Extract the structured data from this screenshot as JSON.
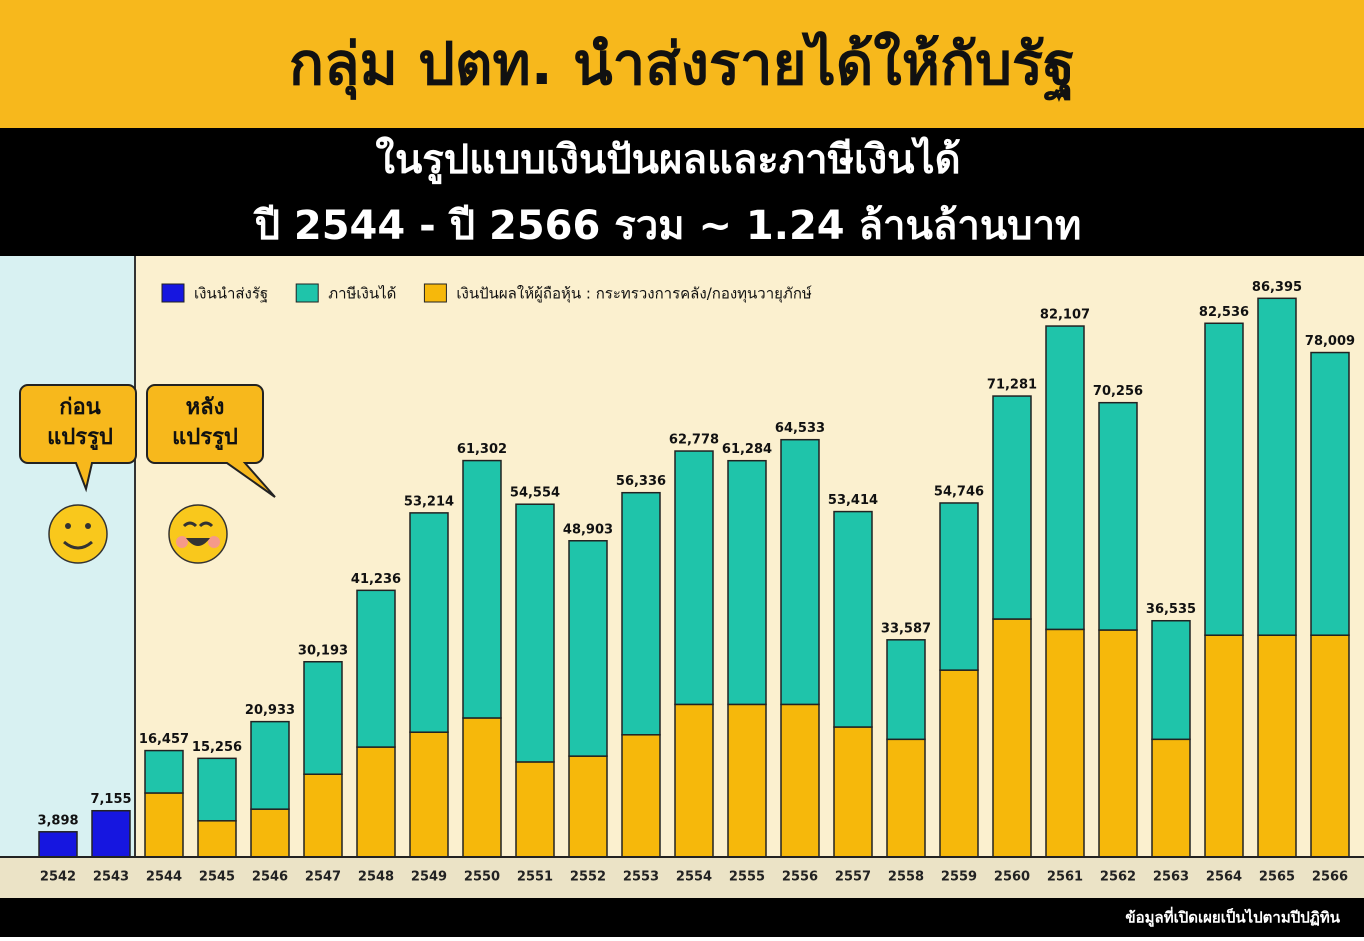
{
  "chart_data": {
    "type": "stacked-bar",
    "title": "กลุ่ม ปตท. นำส่งรายได้ให้กับรัฐ",
    "subtitle": [
      "ในรูปแบบเงินปันผลและภาษีเงินได้",
      "ปี 2544 - ปี 2566 รวม ~ 1.24 ล้านล้านบาท"
    ],
    "categories": [
      "2542",
      "2543",
      "2544",
      "2545",
      "2546",
      "2547",
      "2548",
      "2549",
      "2550",
      "2551",
      "2552",
      "2553",
      "2554",
      "2555",
      "2556",
      "2557",
      "2558",
      "2559",
      "2560",
      "2561",
      "2562",
      "2563",
      "2564",
      "2565",
      "2566"
    ],
    "series": [
      {
        "name": "เงินนำส่งรัฐ",
        "color": "#1616e0",
        "values": [
          3898,
          7155,
          null,
          null,
          null,
          null,
          null,
          null,
          null,
          null,
          null,
          null,
          null,
          null,
          null,
          null,
          null,
          null,
          null,
          null,
          null,
          null,
          null,
          null,
          null
        ]
      },
      {
        "name": "เงินปันผลให้ผู้ถือหุ้น : กระทรวงการคลัง/กองทุนวายุภักษ์",
        "color": "#f6b80b",
        "values": [
          null,
          null,
          9900,
          5600,
          7400,
          12800,
          17000,
          19300,
          21500,
          14700,
          15600,
          18900,
          23600,
          23600,
          23600,
          20100,
          18200,
          28900,
          36800,
          35200,
          35100,
          18200,
          34300,
          34300,
          34300
        ]
      },
      {
        "name": "ภาษีเงินได้",
        "color": "#1fc4aa",
        "values": [
          null,
          null,
          6557,
          9656,
          13533,
          17393,
          24236,
          33914,
          39802,
          39854,
          33303,
          37436,
          39178,
          37684,
          40933,
          33314,
          15387,
          25846,
          34481,
          46907,
          35156,
          18335,
          48236,
          52095,
          43709
        ]
      }
    ],
    "legend_order": [
      0,
      2,
      1
    ],
    "totals": {
      "values": [
        3898,
        7155,
        16457,
        15256,
        20933,
        30193,
        41236,
        53214,
        61302,
        54554,
        48903,
        56336,
        62778,
        61284,
        64533,
        53414,
        33587,
        54746,
        71281,
        82107,
        70256,
        36535,
        82536,
        86395,
        78009
      ],
      "value_labels": [
        "3,898",
        "7,155",
        "16,457",
        "15,256",
        "20,933",
        "30,193",
        "41,236",
        "53,214",
        "61,302",
        "54,554",
        "48,903",
        "56,336",
        "62,778",
        "61,284",
        "64,533",
        "53,414",
        "33,587",
        "54,746",
        "71,281",
        "82,107",
        "70,256",
        "36,535",
        "82,536",
        "86,395",
        "78,009"
      ]
    },
    "ylim": [
      0,
      90000
    ],
    "annotations": {
      "before": [
        "ก่อน",
        "แปรรูป"
      ],
      "after": [
        "หลัง",
        "แปรรูป"
      ]
    },
    "footnote": "ข้อมูลที่เปิดเผยเป็นไปตามปีปฏิทิน"
  }
}
